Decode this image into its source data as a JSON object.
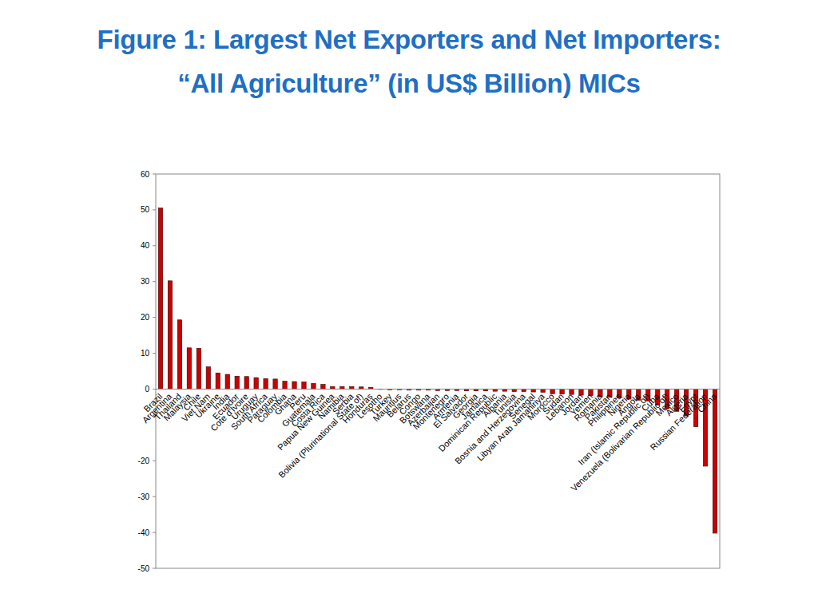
{
  "chart_data": {
    "type": "bar",
    "title": "Figure 1: Largest Net Exporters and Net Importers:\n“All Agriculture” (in US$ Billion) MICs",
    "categories": [
      "Brazil",
      "Argentina",
      "Thailand",
      "Malaysia",
      "Chile",
      "Viet Nam",
      "Ukraine",
      "India",
      "Ecuador",
      "Cote d'Ivoire",
      "Uruguay",
      "South Africa",
      "Paraguay",
      "Colombia",
      "Ghana",
      "Peru",
      "Guatemala",
      "Costa Rica",
      "Papua New Guinea",
      "Namibia",
      "Serbia",
      "Bolivia (Plurinational State of)",
      "Honduras",
      "Lesotho",
      "Turkey",
      "Mauritius",
      "Belarus",
      "Congo",
      "Botswana",
      "Azerbaijan",
      "Montenegro",
      "Armenia",
      "El Salvador",
      "Georgia",
      "Jamaica",
      "Dominican Republic",
      "Albania",
      "Tunisia",
      "Bosnia and Herzegovina",
      "Senegal",
      "Libyan Arab Jamahiriya",
      "Morocco",
      "Sudan",
      "Lebanon",
      "Jordan",
      "Yemen",
      "Romania",
      "Pakistan",
      "Philippines",
      "Nigeria",
      "Angola",
      "Iran (Islamic Republic of)",
      "Cuba",
      "Venezuela (Bolivarian Republic of)",
      "Mexico",
      "Algeria",
      "Egypt",
      "Russian Federation",
      "China"
    ],
    "values": [
      50.5,
      30.2,
      19.3,
      11.5,
      11.4,
      6.2,
      4.5,
      4.1,
      3.6,
      3.5,
      3.2,
      2.9,
      2.8,
      2.2,
      2.1,
      2.0,
      1.6,
      1.3,
      0.7,
      0.7,
      0.7,
      0.6,
      0.5,
      -0.1,
      -0.2,
      -0.2,
      -0.3,
      -0.3,
      -0.3,
      -0.4,
      -0.4,
      -0.4,
      -0.5,
      -0.5,
      -0.5,
      -0.6,
      -0.6,
      -0.7,
      -0.7,
      -0.8,
      -0.9,
      -1.3,
      -1.4,
      -1.5,
      -1.7,
      -1.8,
      -2.1,
      -2.3,
      -2.5,
      -2.8,
      -3.1,
      -3.3,
      -4.5,
      -5.5,
      -6.2,
      -7.5,
      -10.5,
      -21.5,
      -40.2
    ],
    "color": "#cc0000",
    "ylim": [
      -50,
      60
    ],
    "yticks": [
      -50,
      -40,
      -30,
      -20,
      0,
      10,
      20,
      30,
      40,
      50,
      60
    ],
    "grid": false
  }
}
